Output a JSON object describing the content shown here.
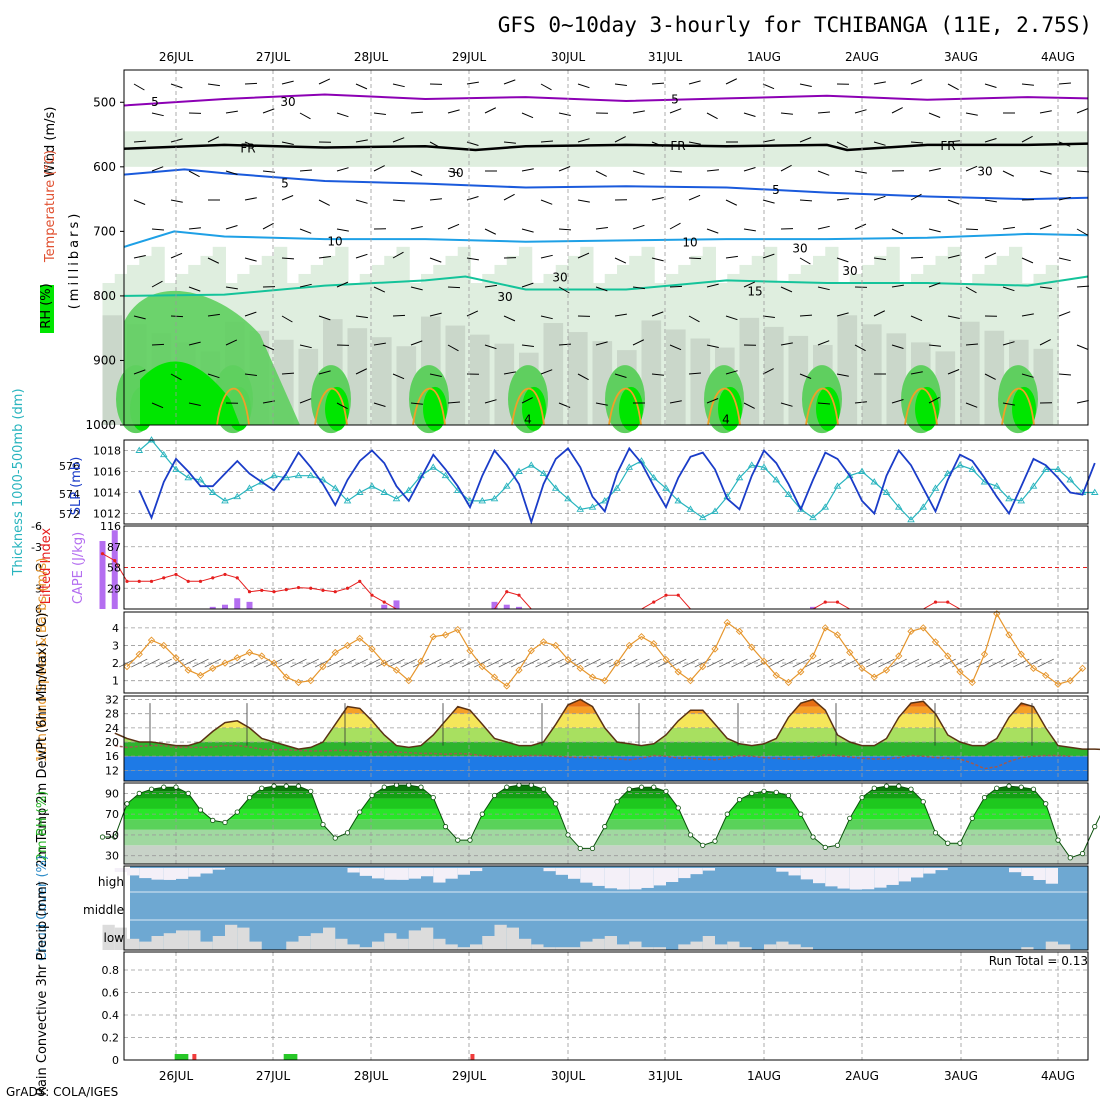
{
  "title": "GFS 0~10day 3-hourly for TCHIBANGA (11E, 2.75S)",
  "credit": "GrADS: COLA/IGES",
  "dates": [
    "26JUL",
    "27JUL",
    "28JUL",
    "29JUL",
    "30JUL",
    "31JUL",
    "1AUG",
    "2AUG",
    "3AUG",
    "4AUG"
  ],
  "colors": {
    "rh_dark": "#00e600",
    "rh_mid": "#5fcf5f",
    "rh_light": "#b4d8b4",
    "rh_pale": "#dfeedf",
    "gray_fill": "#b8c4b8",
    "purple": "#8c00b4",
    "blue": "#1a5adc",
    "cyan": "#1ea0e6",
    "teal": "#14c39a",
    "orange": "#f0a028",
    "slp": "#1a3cc8",
    "thick": "#28b4be",
    "cape": "#b46ef0",
    "li": "#e61e1e",
    "wind": "#e6962d",
    "cloud": "#6ea8d2",
    "cloud_light": "#dcdcdc",
    "precip_green": "#28c828",
    "precip_red": "#f03c3c"
  },
  "chart_data": [
    {
      "type": "heatmap",
      "name": "pressure-level cross-section",
      "ylabel": "(millibars)",
      "legend_labels": [
        "RH (%)",
        "Temperature (°C)",
        "Wind (m/s)"
      ],
      "y_ticks": [
        500,
        600,
        700,
        800,
        900,
        1000
      ],
      "ylim": [
        450,
        1000
      ],
      "contour_labels": [
        "5",
        "5",
        "FR",
        "FR",
        "FR",
        "5",
        "5",
        "10",
        "10",
        "15",
        "30",
        "30",
        "30",
        "30",
        "30",
        "30",
        "30",
        "4",
        "4"
      ],
      "isotherms": {
        "minus5": [
          [
            0,
            505
          ],
          [
            1,
            495
          ],
          [
            2,
            488
          ],
          [
            3,
            495
          ],
          [
            4,
            492
          ],
          [
            5,
            498
          ],
          [
            6,
            494
          ],
          [
            7,
            490
          ],
          [
            8,
            496
          ],
          [
            9,
            492
          ],
          [
            9.6,
            494
          ]
        ],
        "freezing": [
          [
            0,
            572
          ],
          [
            1,
            566
          ],
          [
            2,
            570
          ],
          [
            3,
            568
          ],
          [
            3.5,
            574
          ],
          [
            4,
            568
          ],
          [
            5,
            566
          ],
          [
            6,
            568
          ],
          [
            7,
            566
          ],
          [
            7.2,
            574
          ],
          [
            8,
            566
          ],
          [
            9,
            566
          ],
          [
            9.6,
            564
          ]
        ],
        "plus5": [
          [
            0,
            612
          ],
          [
            0.6,
            604
          ],
          [
            1,
            610
          ],
          [
            2,
            622
          ],
          [
            3,
            626
          ],
          [
            4,
            632
          ],
          [
            5,
            630
          ],
          [
            6,
            632
          ],
          [
            7,
            640
          ],
          [
            8,
            646
          ],
          [
            9,
            650
          ],
          [
            9.6,
            648
          ]
        ],
        "plus10": [
          [
            0,
            724
          ],
          [
            0.5,
            700
          ],
          [
            1,
            708
          ],
          [
            2,
            712
          ],
          [
            3,
            712
          ],
          [
            4,
            716
          ],
          [
            5,
            714
          ],
          [
            6,
            712
          ],
          [
            7,
            712
          ],
          [
            8,
            710
          ],
          [
            9,
            704
          ],
          [
            9.6,
            706
          ]
        ],
        "plus15": [
          [
            0,
            800
          ],
          [
            1,
            798
          ],
          [
            2,
            784
          ],
          [
            3,
            776
          ],
          [
            3.4,
            770
          ],
          [
            4,
            790
          ],
          [
            5,
            790
          ],
          [
            6,
            776
          ],
          [
            7,
            780
          ],
          [
            8,
            780
          ],
          [
            9,
            784
          ],
          [
            9.6,
            770
          ]
        ]
      }
    },
    {
      "type": "line",
      "name": "SLP and thickness",
      "ylabel_left": "Thickness 1000-500mb (dm)",
      "ylabel_right": "SLP (mb)",
      "y_ticks_left": [
        572,
        574,
        576
      ],
      "y_ticks_right": [
        1012,
        1014,
        1016,
        1018
      ],
      "ylim_right": [
        1011,
        1019
      ],
      "series": [
        {
          "name": "SLP",
          "values": [
            1014.2,
            1011.6,
            1015.0,
            1017.2,
            1016.0,
            1014.6,
            1014.6,
            1015.8,
            1017.0,
            1015.8,
            1015.0,
            1014.2,
            1015.8,
            1017.8,
            1016.4,
            1014.8,
            1012.8,
            1015.2,
            1017.0,
            1018.0,
            1016.8,
            1014.6,
            1013.2,
            1015.4,
            1017.6,
            1016.2,
            1014.6,
            1012.6,
            1015.6,
            1018.0,
            1016.6,
            1014.8,
            1011.2,
            1014.8,
            1017.2,
            1018.2,
            1016.4,
            1013.6,
            1012.2,
            1015.8,
            1018.2,
            1016.8,
            1014.6,
            1012.6,
            1015.4,
            1017.4,
            1017.8,
            1016.2,
            1013.4,
            1012.4,
            1015.6,
            1018.0,
            1016.8,
            1014.8,
            1012.4,
            1015.2,
            1017.8,
            1017.2,
            1015.6,
            1013.2,
            1012.0,
            1015.6,
            1018.0,
            1016.6,
            1014.4,
            1012.2,
            1015.2,
            1017.6,
            1017.0,
            1015.4,
            1013.6,
            1012.0,
            1014.6,
            1017.2,
            1016.6,
            1015.4,
            1014.0,
            1013.8,
            1016.8
          ]
        },
        {
          "name": "Thickness",
          "values": [
            1018.0,
            1019.0,
            1017.6,
            1016.2,
            1015.4,
            1015.2,
            1014.0,
            1013.2,
            1013.6,
            1014.4,
            1015.0,
            1015.6,
            1015.4,
            1015.6,
            1015.6,
            1015.2,
            1014.4,
            1013.2,
            1014.0,
            1014.6,
            1014.0,
            1013.4,
            1014.2,
            1015.6,
            1016.4,
            1015.6,
            1014.2,
            1013.2,
            1013.2,
            1013.4,
            1014.6,
            1016.0,
            1016.6,
            1015.8,
            1014.4,
            1013.4,
            1012.4,
            1012.6,
            1013.2,
            1014.4,
            1016.4,
            1017.0,
            1015.4,
            1014.4,
            1013.2,
            1012.4,
            1011.6,
            1012.2,
            1013.6,
            1015.4,
            1016.6,
            1016.4,
            1015.2,
            1013.8,
            1012.4,
            1011.6,
            1012.6,
            1014.6,
            1015.6,
            1016.0,
            1015.0,
            1014.0,
            1012.6,
            1011.4,
            1012.6,
            1014.4,
            1015.8,
            1016.6,
            1016.2,
            1015.0,
            1014.6,
            1013.4,
            1013.2,
            1014.6,
            1016.2,
            1016.2,
            1015.2,
            1014.0,
            1014.0
          ]
        }
      ]
    },
    {
      "type": "bar",
      "name": "CAPE and Lifted Index",
      "ylabel_left": "Lifted Index",
      "ylabel_right": "CAPE (J/kg)",
      "y_ticks_left": [
        -6,
        -3,
        0,
        3,
        6
      ],
      "y_ticks_right": [
        29,
        58,
        87,
        116
      ],
      "ylim_right": [
        0,
        116
      ],
      "cape_values": [
        95,
        110,
        0,
        0,
        0,
        0,
        0,
        0,
        0,
        3,
        6,
        15,
        10,
        0,
        0,
        0,
        0,
        0,
        0,
        0,
        0,
        0,
        0,
        6,
        12,
        0,
        0,
        0,
        0,
        0,
        0,
        0,
        10,
        6,
        3,
        0,
        0,
        0,
        0,
        0,
        0,
        0,
        0,
        0,
        0,
        0,
        0,
        0,
        0,
        0,
        0,
        0,
        0,
        0,
        0,
        0,
        0,
        0,
        3,
        0,
        0,
        0,
        0,
        0,
        0,
        0,
        0,
        0,
        0,
        0,
        0,
        0,
        0,
        0,
        0,
        0,
        0,
        0,
        0
      ],
      "li_values": [
        -2,
        -1,
        2,
        2,
        2,
        1.5,
        1,
        2,
        2,
        1.5,
        1,
        1.5,
        3.5,
        3.3,
        3.5,
        3.2,
        2.9,
        3,
        3.3,
        3.5,
        3,
        2,
        4,
        5,
        6,
        6,
        6,
        6,
        6,
        6,
        6,
        6,
        6,
        3.5,
        4,
        6,
        6,
        6,
        6,
        6,
        6,
        6,
        6,
        6,
        6,
        5,
        4,
        4,
        6,
        6,
        6,
        6,
        6,
        6,
        6,
        6,
        6,
        6,
        6,
        5,
        5,
        6,
        6,
        6,
        6,
        6,
        6,
        6,
        5,
        5,
        6,
        6,
        6,
        6,
        6,
        6,
        6,
        6,
        6
      ]
    },
    {
      "type": "line",
      "name": "10m wind speed",
      "ylabel": "10m Wind Speed & Barbs (m/s)",
      "y_ticks": [
        1,
        2,
        3,
        4
      ],
      "ylim": [
        0.3,
        4.9
      ],
      "values": [
        1.8,
        2.5,
        3.3,
        3.0,
        2.3,
        1.6,
        1.3,
        1.7,
        2.0,
        2.3,
        2.6,
        2.4,
        2.0,
        1.2,
        0.9,
        1.0,
        1.8,
        2.6,
        3.0,
        3.4,
        2.8,
        2.0,
        1.6,
        1.0,
        2.1,
        3.5,
        3.6,
        3.9,
        2.7,
        1.8,
        1.2,
        0.7,
        1.6,
        2.7,
        3.2,
        3.0,
        2.2,
        1.7,
        1.2,
        1.0,
        2.0,
        3.0,
        3.5,
        3.1,
        2.2,
        1.5,
        1.0,
        1.8,
        2.8,
        4.3,
        3.8,
        2.9,
        2.1,
        1.3,
        0.9,
        1.5,
        2.4,
        4.0,
        3.6,
        2.6,
        1.7,
        1.2,
        1.6,
        2.4,
        3.8,
        4.0,
        3.2,
        2.4,
        1.5,
        0.9,
        2.5,
        4.8,
        3.6,
        2.5,
        1.7,
        1.3,
        0.8,
        1.0,
        1.7
      ]
    },
    {
      "type": "area",
      "name": "2m temperature and dew point",
      "ylabel": "2m Temp 2m DewPt (6hr Min/Max) (°C)",
      "y_ticks": [
        12,
        16,
        20,
        24,
        28,
        32
      ],
      "ylim": [
        9,
        33
      ],
      "temp": [
        22.5,
        21,
        20,
        20,
        19.5,
        19,
        19,
        20,
        23,
        25.5,
        26,
        24,
        21,
        20,
        19,
        18,
        18.5,
        20,
        25,
        30,
        29.5,
        26,
        22,
        19,
        18.5,
        19,
        22,
        26,
        30,
        29,
        25,
        21,
        20,
        19,
        19,
        20,
        25,
        30.5,
        32,
        30,
        24,
        20,
        19.5,
        19,
        19.5,
        22,
        26,
        29,
        29,
        25,
        21,
        19.5,
        19,
        19.5,
        21,
        27,
        31,
        32,
        29,
        22,
        20,
        19,
        19,
        21,
        27,
        31,
        31.5,
        28,
        22,
        20,
        19,
        19,
        21,
        27,
        31,
        30,
        24,
        19,
        18.5,
        18,
        18,
        17.8
      ],
      "dewpt": [
        19,
        18.5,
        18.8,
        19,
        19,
        18.5,
        18.5,
        18.5,
        18.6,
        19,
        19,
        18.6,
        18,
        17.8,
        17.8,
        17.6,
        17.5,
        17.5,
        17.6,
        17.6,
        17.4,
        17.2,
        17.2,
        17.2,
        17,
        16.8,
        16.8,
        16.6,
        16.8,
        16.6,
        16.2,
        16,
        16,
        16,
        16.2,
        16.2,
        16,
        15.8,
        15.6,
        15.6,
        15.4,
        15.2,
        15,
        15.4,
        16.2,
        16,
        15.4,
        15.4,
        15.2,
        15,
        15.4,
        16.2,
        16,
        15.6,
        15.4,
        15.2,
        15.2,
        15.6,
        16.4,
        16.2,
        15.8,
        15.4,
        15.2,
        15.2,
        15.6,
        16.2,
        16,
        15.6,
        15.4,
        15.2,
        14,
        12.5,
        13,
        14.5,
        15.6,
        16,
        16.2,
        16.2,
        16
      ]
    },
    {
      "type": "area",
      "name": "2m relative humidity",
      "ylabel": "2m RH (%)",
      "y_ticks": [
        30,
        50,
        70,
        90
      ],
      "ylim": [
        22,
        100
      ],
      "values": [
        48,
        48,
        80,
        90,
        94,
        96,
        96,
        90,
        74,
        64,
        62,
        72,
        86,
        95,
        97,
        97,
        97,
        92,
        60,
        47,
        52,
        72,
        88,
        96,
        98,
        98,
        96,
        86,
        58,
        45,
        45,
        70,
        88,
        96,
        98,
        98,
        94,
        80,
        50,
        37,
        37,
        58,
        82,
        94,
        96,
        96,
        92,
        76,
        50,
        40,
        44,
        70,
        84,
        90,
        92,
        91,
        88,
        70,
        48,
        38,
        40,
        66,
        86,
        95,
        97,
        97,
        94,
        82,
        52,
        42,
        42,
        66,
        86,
        95,
        97,
        96,
        94,
        80,
        45,
        28,
        32,
        58,
        82,
        94,
        97,
        98,
        97,
        95
      ]
    },
    {
      "type": "bar",
      "name": "cloud cover",
      "ylabel": "Cloud Cover (%)",
      "levels": [
        "high",
        "middle",
        "low"
      ],
      "high_clear": [
        0,
        0,
        0,
        0,
        0,
        0,
        0,
        0,
        0,
        0,
        0,
        0,
        0,
        0,
        0,
        0,
        0,
        0,
        0,
        0,
        0,
        0,
        0,
        0,
        0,
        0,
        0,
        0,
        0,
        0,
        0,
        0,
        0,
        0,
        0,
        0,
        0,
        0,
        0,
        0,
        0,
        0,
        0,
        0,
        0,
        0,
        0,
        0,
        0,
        0,
        0,
        0,
        0,
        0,
        0,
        0,
        0,
        0,
        0,
        0,
        0,
        0,
        0,
        0,
        0,
        0,
        0,
        0,
        0,
        0,
        0,
        0,
        0,
        0,
        0,
        0,
        0,
        0,
        0
      ],
      "low_fill": [
        0.9,
        0.8,
        0.4,
        0.3,
        0.5,
        0.6,
        0.7,
        0.7,
        0.3,
        0.5,
        0.9,
        0.8,
        0.3,
        0,
        0,
        0.3,
        0.5,
        0.6,
        0.8,
        0.4,
        0.2,
        0.1,
        0.3,
        0.6,
        0.4,
        0.7,
        0.8,
        0.4,
        0.2,
        0.1,
        0.2,
        0.5,
        0.9,
        0.8,
        0.4,
        0.2,
        0.1,
        0.1,
        0.1,
        0.3,
        0.4,
        0.5,
        0.2,
        0.3,
        0.1,
        0.1,
        0,
        0.2,
        0.3,
        0.5,
        0.2,
        0.3,
        0.1,
        0,
        0.2,
        0.3,
        0.2,
        0.1,
        0,
        0,
        0,
        0,
        0,
        0,
        0,
        0,
        0,
        0,
        0,
        0,
        0,
        0,
        0,
        0,
        0,
        0.1,
        0,
        0.3,
        0.2
      ]
    },
    {
      "type": "bar",
      "name": "3hr precipitation",
      "ylabel": "Total / Rain Convective 3hr Precip (mm)",
      "annotation": "Run Total = 0.13",
      "y_ticks": [
        0,
        0.2,
        0.4,
        0.6,
        0.8
      ],
      "ylim": [
        0,
        0.96
      ],
      "bars": [
        {
          "x": 6.3,
          "value": 0.02,
          "kind": "total"
        },
        {
          "x": 6.6,
          "value": 0.02,
          "kind": "total"
        },
        {
          "x": 7.5,
          "value": 0.02,
          "kind": "convective"
        },
        {
          "x": 15.2,
          "value": 0.02,
          "kind": "total"
        },
        {
          "x": 15.5,
          "value": 0.02,
          "kind": "total"
        },
        {
          "x": 30.2,
          "value": 0.01,
          "kind": "convective"
        }
      ]
    }
  ]
}
